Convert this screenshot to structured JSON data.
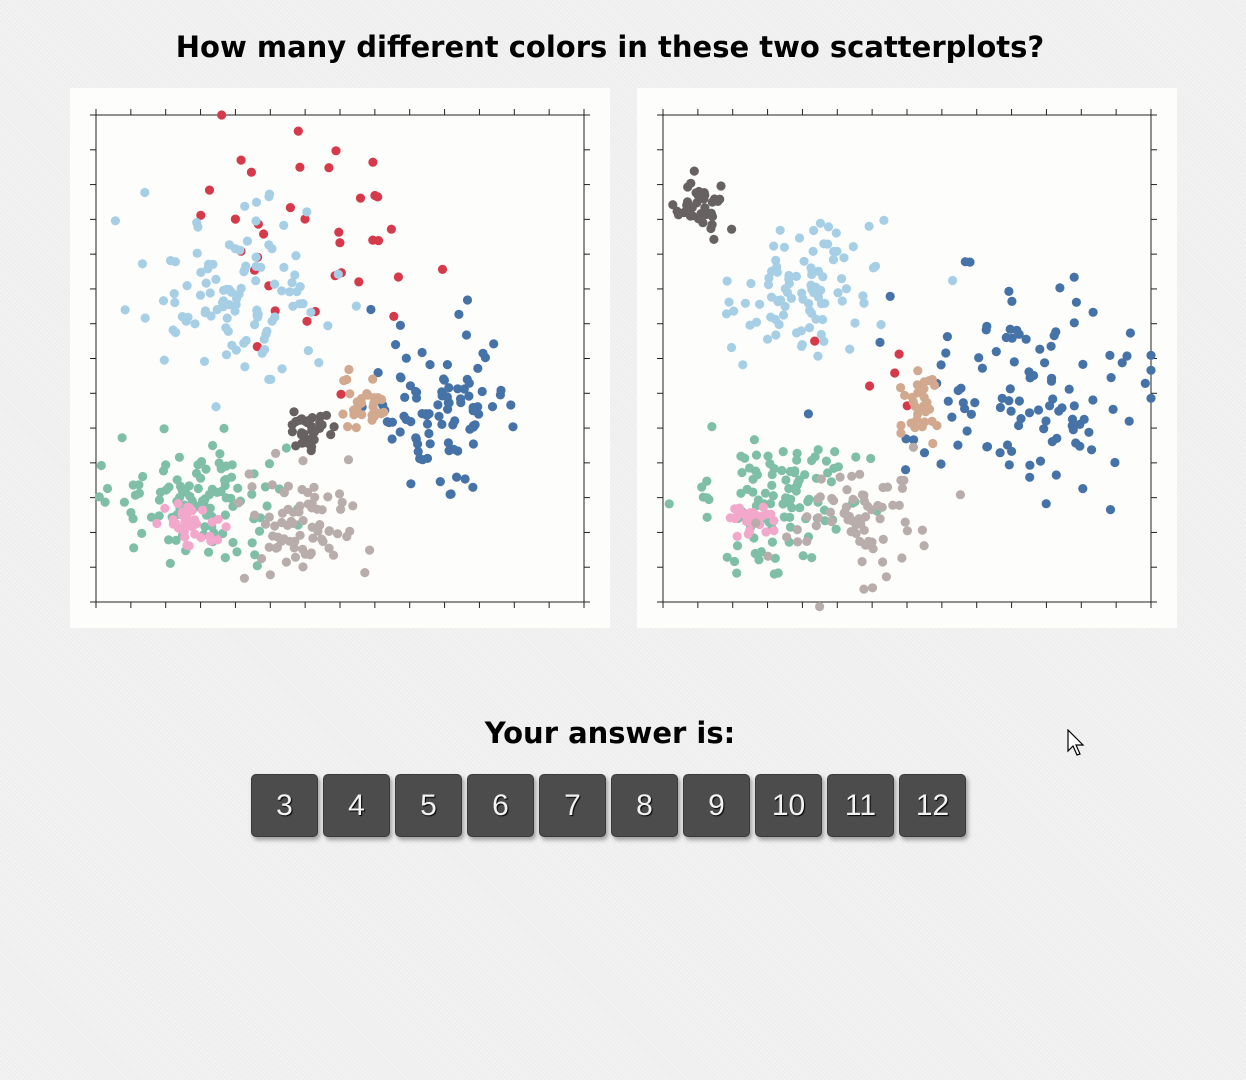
{
  "question": "How many different colors in these two scatterplots?",
  "answer_prompt": "Your answer is:",
  "answer_options": [
    "3",
    "4",
    "5",
    "6",
    "7",
    "8",
    "9",
    "10",
    "11",
    "12"
  ],
  "chart_data": [
    {
      "type": "scatter",
      "series": [
        {
          "color": "#d63a4a",
          "center": [
            0.43,
            0.23
          ],
          "spread": [
            0.15,
            0.14
          ],
          "count": 38
        },
        {
          "color": "#a6cfe6",
          "center": [
            0.3,
            0.38
          ],
          "spread": [
            0.1,
            0.08
          ],
          "count": 110
        },
        {
          "color": "#4572a7",
          "center": [
            0.7,
            0.6
          ],
          "spread": [
            0.07,
            0.07
          ],
          "count": 95
        },
        {
          "color": "#d2a98f",
          "center": [
            0.55,
            0.58
          ],
          "spread": [
            0.025,
            0.028
          ],
          "count": 30
        },
        {
          "color": "#676261",
          "center": [
            0.44,
            0.65
          ],
          "spread": [
            0.022,
            0.022
          ],
          "count": 35
        },
        {
          "color": "#7fbfa8",
          "center": [
            0.22,
            0.8
          ],
          "spread": [
            0.09,
            0.06
          ],
          "count": 110
        },
        {
          "color": "#f1a8cb",
          "center": [
            0.19,
            0.84
          ],
          "spread": [
            0.03,
            0.02
          ],
          "count": 35
        },
        {
          "color": "#b8adab",
          "center": [
            0.42,
            0.84
          ],
          "spread": [
            0.06,
            0.06
          ],
          "count": 75
        }
      ]
    },
    {
      "type": "scatter",
      "series": [
        {
          "color": "#676261",
          "center": [
            0.08,
            0.19
          ],
          "spread": [
            0.025,
            0.03
          ],
          "count": 40
        },
        {
          "color": "#a6cfe6",
          "center": [
            0.29,
            0.36
          ],
          "spread": [
            0.08,
            0.07
          ],
          "count": 95
        },
        {
          "color": "#4572a7",
          "center": [
            0.72,
            0.58
          ],
          "spread": [
            0.14,
            0.12
          ],
          "count": 110
        },
        {
          "color": "#d63a4a",
          "center": [
            0.46,
            0.53
          ],
          "spread": [
            0.09,
            0.04
          ],
          "count": 5
        },
        {
          "color": "#d2a98f",
          "center": [
            0.53,
            0.59
          ],
          "spread": [
            0.02,
            0.035
          ],
          "count": 30
        },
        {
          "color": "#7fbfa8",
          "center": [
            0.24,
            0.79
          ],
          "spread": [
            0.08,
            0.07
          ],
          "count": 105
        },
        {
          "color": "#f1a8cb",
          "center": [
            0.18,
            0.83
          ],
          "spread": [
            0.02,
            0.02
          ],
          "count": 30
        },
        {
          "color": "#b8adab",
          "center": [
            0.4,
            0.83
          ],
          "spread": [
            0.06,
            0.06
          ],
          "count": 70
        }
      ]
    }
  ]
}
